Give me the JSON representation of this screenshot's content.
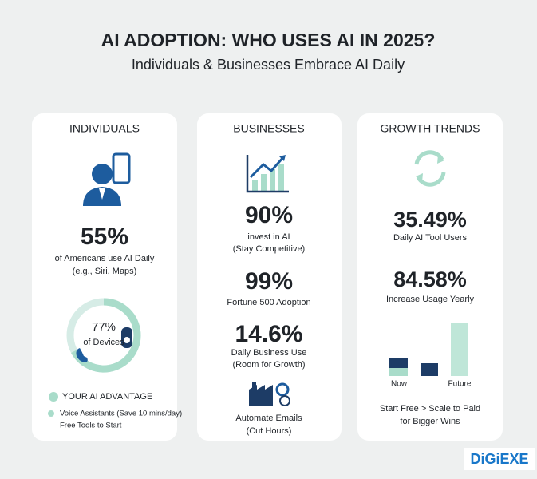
{
  "header": {
    "title": "AI ADOPTION: WHO USES AI IN 2025?",
    "subtitle": "Individuals & Businesses Embrace AI Daily"
  },
  "cards": [
    {
      "heading": "INDIVIDUALS",
      "stat": "55%",
      "lines": [
        "of Americans use AI Daily",
        "(e.g., Siri, Maps)"
      ],
      "donut": {
        "value": "77%",
        "label": "of Devices"
      },
      "advantage": {
        "title": "YOUR AI ADVANTAGE",
        "lines": [
          "Voice Assistants (Save 10 mins/day)",
          "Free Tools to Start"
        ]
      }
    },
    {
      "heading": "BUSINESSES",
      "stats": [
        {
          "value": "90%",
          "lines": [
            "invest in AI",
            "(Stay Competitive)"
          ]
        },
        {
          "value": "99%",
          "lines": [
            "Fortune 500 Adoption"
          ]
        },
        {
          "value": "14.6%",
          "lines": [
            "Daily Business Use",
            "(Room for Growth)"
          ]
        }
      ],
      "footer": [
        "Automate Emails",
        "(Cut Hours)"
      ]
    },
    {
      "heading": "GROWTH TRENDS",
      "stats": [
        {
          "value": "35.49%",
          "lines": [
            "Daily AI Tool Users"
          ]
        },
        {
          "value": "84.58%",
          "lines": [
            "Increase Usage Yearly"
          ]
        }
      ],
      "bar_labels": [
        "Now",
        "Future"
      ],
      "footer": [
        "Start Free > Scale to Paid",
        "for Bigger Wins"
      ]
    }
  ],
  "logo": "DiGiEXE"
}
